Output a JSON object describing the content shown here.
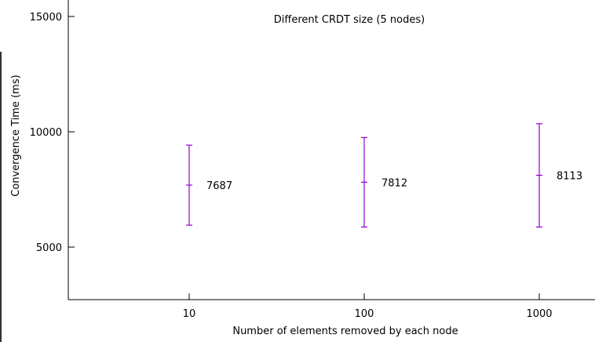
{
  "chart_data": {
    "type": "errorbar",
    "title": "Different CRDT size (5 nodes)",
    "xlabel": "Number of elements removed by each node",
    "ylabel": "Convergence Time (ms)",
    "categories": [
      "10",
      "100",
      "1000"
    ],
    "y_ticks": [
      "5000",
      "10000",
      "15000"
    ],
    "ylim": [
      2800,
      15500
    ],
    "series": [
      {
        "values": [
          7687,
          7812,
          8113
        ],
        "low": [
          5950,
          5870,
          5870
        ],
        "high": [
          9420,
          9750,
          10350
        ],
        "labels": [
          "7687",
          "7812",
          "8113"
        ]
      }
    ],
    "grid": false,
    "colors": {
      "series": "#9400d3",
      "axis": "#000000"
    }
  }
}
